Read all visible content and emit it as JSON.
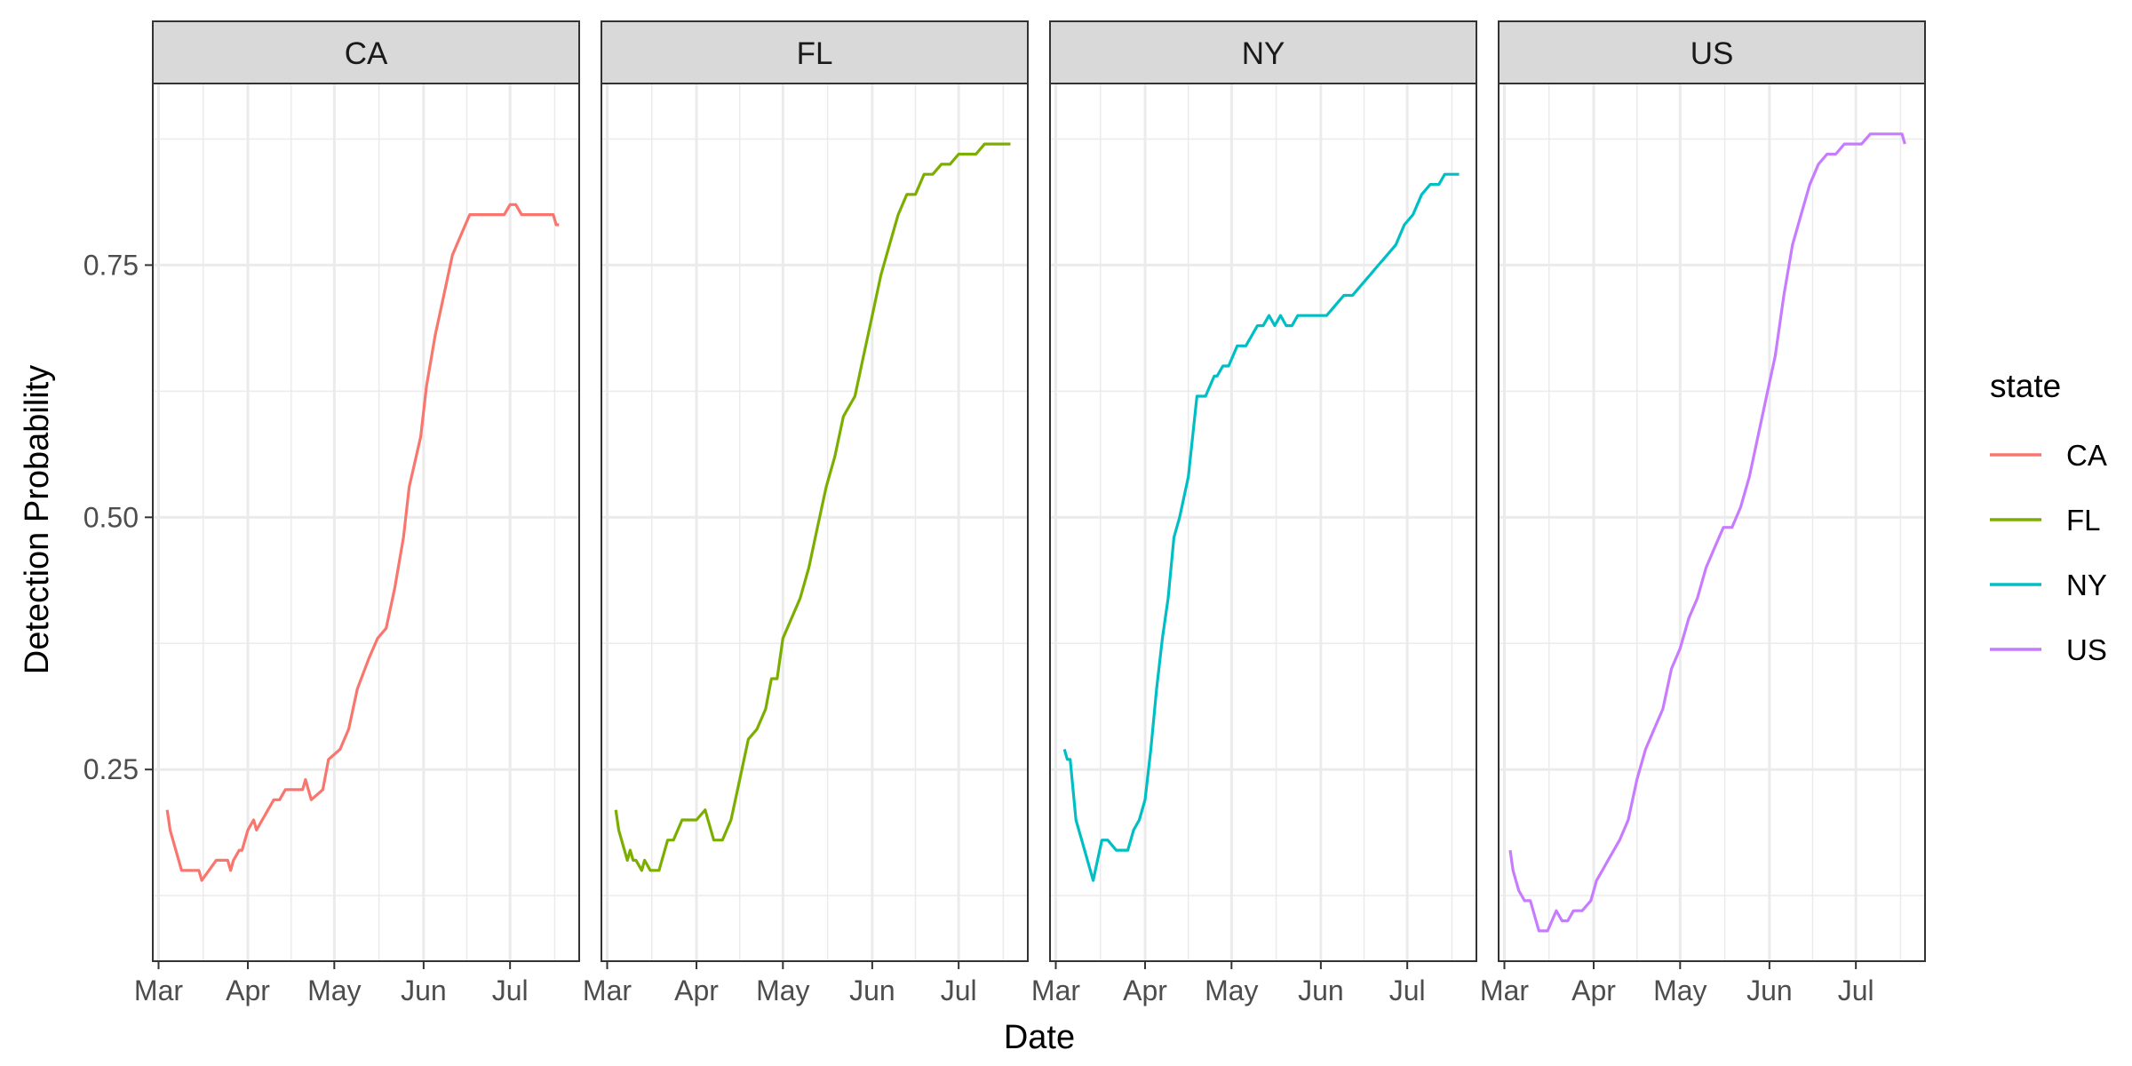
{
  "chart_data": {
    "type": "line",
    "facet_by": "state",
    "facets": [
      "CA",
      "FL",
      "NY",
      "US"
    ],
    "xlabel": "Date",
    "ylabel": "Detection Probability",
    "x_tick_labels": [
      "Mar",
      "Apr",
      "May",
      "Jun",
      "Jul"
    ],
    "x_ticks": [
      "2020-03-01",
      "2020-04-01",
      "2020-05-01",
      "2020-06-01",
      "2020-07-01"
    ],
    "xlim": [
      "2020-02-28",
      "2020-07-25"
    ],
    "y_ticks": [
      0.25,
      0.5,
      0.75
    ],
    "y_tick_labels": [
      "0.25",
      "0.50",
      "0.75"
    ],
    "ylim": [
      0.06,
      0.93
    ],
    "grid": true,
    "legend": {
      "title": "state",
      "position": "right",
      "entries": [
        "CA",
        "FL",
        "NY",
        "US"
      ]
    },
    "colors": {
      "CA": "#F8766D",
      "FL": "#7CAE00",
      "NY": "#00BFC4",
      "US": "#C77CFF"
    },
    "series": [
      {
        "name": "CA",
        "x": [
          "2020-03-04",
          "2020-03-05",
          "2020-03-06",
          "2020-03-09",
          "2020-03-12",
          "2020-03-15",
          "2020-03-16",
          "2020-03-21",
          "2020-03-22",
          "2020-03-25",
          "2020-03-26",
          "2020-03-27",
          "2020-03-29",
          "2020-03-30",
          "2020-04-01",
          "2020-04-03",
          "2020-04-04",
          "2020-04-06",
          "2020-04-08",
          "2020-04-10",
          "2020-04-12",
          "2020-04-14",
          "2020-04-20",
          "2020-04-21",
          "2020-04-23",
          "2020-04-27",
          "2020-04-29",
          "2020-05-03",
          "2020-05-06",
          "2020-05-09",
          "2020-05-13",
          "2020-05-16",
          "2020-05-19",
          "2020-05-22",
          "2020-05-25",
          "2020-05-27",
          "2020-05-31",
          "2020-06-02",
          "2020-06-05",
          "2020-06-08",
          "2020-06-11",
          "2020-06-14",
          "2020-06-17",
          "2020-06-20",
          "2020-06-23",
          "2020-06-26",
          "2020-06-29",
          "2020-07-01",
          "2020-07-03",
          "2020-07-05",
          "2020-07-08",
          "2020-07-11",
          "2020-07-16",
          "2020-07-17",
          "2020-07-18"
        ],
        "y": [
          0.21,
          0.19,
          0.18,
          0.15,
          0.15,
          0.15,
          0.14,
          0.16,
          0.16,
          0.16,
          0.15,
          0.16,
          0.17,
          0.17,
          0.19,
          0.2,
          0.19,
          0.2,
          0.21,
          0.22,
          0.22,
          0.23,
          0.23,
          0.24,
          0.22,
          0.23,
          0.26,
          0.27,
          0.29,
          0.33,
          0.36,
          0.38,
          0.39,
          0.43,
          0.48,
          0.53,
          0.58,
          0.63,
          0.68,
          0.72,
          0.76,
          0.78,
          0.8,
          0.8,
          0.8,
          0.8,
          0.8,
          0.81,
          0.81,
          0.8,
          0.8,
          0.8,
          0.8,
          0.79,
          0.79
        ]
      },
      {
        "name": "FL",
        "x": [
          "2020-03-04",
          "2020-03-05",
          "2020-03-06",
          "2020-03-08",
          "2020-03-09",
          "2020-03-10",
          "2020-03-11",
          "2020-03-13",
          "2020-03-14",
          "2020-03-16",
          "2020-03-19",
          "2020-03-20",
          "2020-03-22",
          "2020-03-24",
          "2020-03-27",
          "2020-04-01",
          "2020-04-04",
          "2020-04-05",
          "2020-04-07",
          "2020-04-10",
          "2020-04-13",
          "2020-04-16",
          "2020-04-19",
          "2020-04-22",
          "2020-04-25",
          "2020-04-27",
          "2020-04-29",
          "2020-05-01",
          "2020-05-04",
          "2020-05-07",
          "2020-05-10",
          "2020-05-13",
          "2020-05-16",
          "2020-05-19",
          "2020-05-22",
          "2020-05-26",
          "2020-05-29",
          "2020-06-01",
          "2020-06-04",
          "2020-06-07",
          "2020-06-10",
          "2020-06-13",
          "2020-06-16",
          "2020-06-19",
          "2020-06-22",
          "2020-06-25",
          "2020-06-28",
          "2020-07-01",
          "2020-07-04",
          "2020-07-07",
          "2020-07-10",
          "2020-07-13",
          "2020-07-16",
          "2020-07-19"
        ],
        "y": [
          0.21,
          0.19,
          0.18,
          0.16,
          0.17,
          0.16,
          0.16,
          0.15,
          0.16,
          0.15,
          0.15,
          0.16,
          0.18,
          0.18,
          0.2,
          0.2,
          0.21,
          0.2,
          0.18,
          0.18,
          0.2,
          0.24,
          0.28,
          0.29,
          0.31,
          0.34,
          0.34,
          0.38,
          0.4,
          0.42,
          0.45,
          0.49,
          0.53,
          0.56,
          0.6,
          0.62,
          0.66,
          0.7,
          0.74,
          0.77,
          0.8,
          0.82,
          0.82,
          0.84,
          0.84,
          0.85,
          0.85,
          0.86,
          0.86,
          0.86,
          0.87,
          0.87,
          0.87,
          0.87
        ]
      },
      {
        "name": "NY",
        "x": [
          "2020-03-04",
          "2020-03-05",
          "2020-03-06",
          "2020-03-08",
          "2020-03-10",
          "2020-03-14",
          "2020-03-17",
          "2020-03-19",
          "2020-03-22",
          "2020-03-24",
          "2020-03-26",
          "2020-03-28",
          "2020-03-30",
          "2020-04-01",
          "2020-04-03",
          "2020-04-05",
          "2020-04-07",
          "2020-04-09",
          "2020-04-11",
          "2020-04-13",
          "2020-04-16",
          "2020-04-19",
          "2020-04-22",
          "2020-04-25",
          "2020-04-26",
          "2020-04-28",
          "2020-04-30",
          "2020-05-03",
          "2020-05-06",
          "2020-05-08",
          "2020-05-10",
          "2020-05-12",
          "2020-05-14",
          "2020-05-16",
          "2020-05-18",
          "2020-05-20",
          "2020-05-22",
          "2020-05-24",
          "2020-05-26",
          "2020-05-28",
          "2020-05-31",
          "2020-06-03",
          "2020-06-06",
          "2020-06-09",
          "2020-06-12",
          "2020-06-15",
          "2020-06-18",
          "2020-06-21",
          "2020-06-24",
          "2020-06-27",
          "2020-06-30",
          "2020-07-03",
          "2020-07-06",
          "2020-07-09",
          "2020-07-12",
          "2020-07-14",
          "2020-07-17",
          "2020-07-19"
        ],
        "y": [
          0.27,
          0.26,
          0.26,
          0.2,
          0.18,
          0.14,
          0.18,
          0.18,
          0.17,
          0.17,
          0.17,
          0.19,
          0.2,
          0.22,
          0.27,
          0.33,
          0.38,
          0.42,
          0.48,
          0.5,
          0.54,
          0.62,
          0.62,
          0.64,
          0.64,
          0.65,
          0.65,
          0.67,
          0.67,
          0.68,
          0.69,
          0.69,
          0.7,
          0.69,
          0.7,
          0.69,
          0.69,
          0.7,
          0.7,
          0.7,
          0.7,
          0.7,
          0.71,
          0.72,
          0.72,
          0.73,
          0.74,
          0.75,
          0.76,
          0.77,
          0.79,
          0.8,
          0.82,
          0.83,
          0.83,
          0.84,
          0.84,
          0.84
        ]
      },
      {
        "name": "US",
        "x": [
          "2020-03-03",
          "2020-03-04",
          "2020-03-06",
          "2020-03-08",
          "2020-03-10",
          "2020-03-13",
          "2020-03-16",
          "2020-03-19",
          "2020-03-21",
          "2020-03-23",
          "2020-03-25",
          "2020-03-28",
          "2020-03-31",
          "2020-04-02",
          "2020-04-04",
          "2020-04-06",
          "2020-04-08",
          "2020-04-10",
          "2020-04-13",
          "2020-04-16",
          "2020-04-19",
          "2020-04-22",
          "2020-04-25",
          "2020-04-28",
          "2020-05-01",
          "2020-05-04",
          "2020-05-07",
          "2020-05-10",
          "2020-05-13",
          "2020-05-16",
          "2020-05-19",
          "2020-05-22",
          "2020-05-25",
          "2020-05-28",
          "2020-05-31",
          "2020-06-03",
          "2020-06-06",
          "2020-06-09",
          "2020-06-12",
          "2020-06-15",
          "2020-06-18",
          "2020-06-21",
          "2020-06-24",
          "2020-06-27",
          "2020-06-30",
          "2020-07-03",
          "2020-07-06",
          "2020-07-09",
          "2020-07-12",
          "2020-07-15",
          "2020-07-17",
          "2020-07-18"
        ],
        "y": [
          0.17,
          0.15,
          0.13,
          0.12,
          0.12,
          0.09,
          0.09,
          0.11,
          0.1,
          0.1,
          0.11,
          0.11,
          0.12,
          0.14,
          0.15,
          0.16,
          0.17,
          0.18,
          0.2,
          0.24,
          0.27,
          0.29,
          0.31,
          0.35,
          0.37,
          0.4,
          0.42,
          0.45,
          0.47,
          0.49,
          0.49,
          0.51,
          0.54,
          0.58,
          0.62,
          0.66,
          0.72,
          0.77,
          0.8,
          0.83,
          0.85,
          0.86,
          0.86,
          0.87,
          0.87,
          0.87,
          0.88,
          0.88,
          0.88,
          0.88,
          0.88,
          0.87
        ]
      }
    ]
  }
}
